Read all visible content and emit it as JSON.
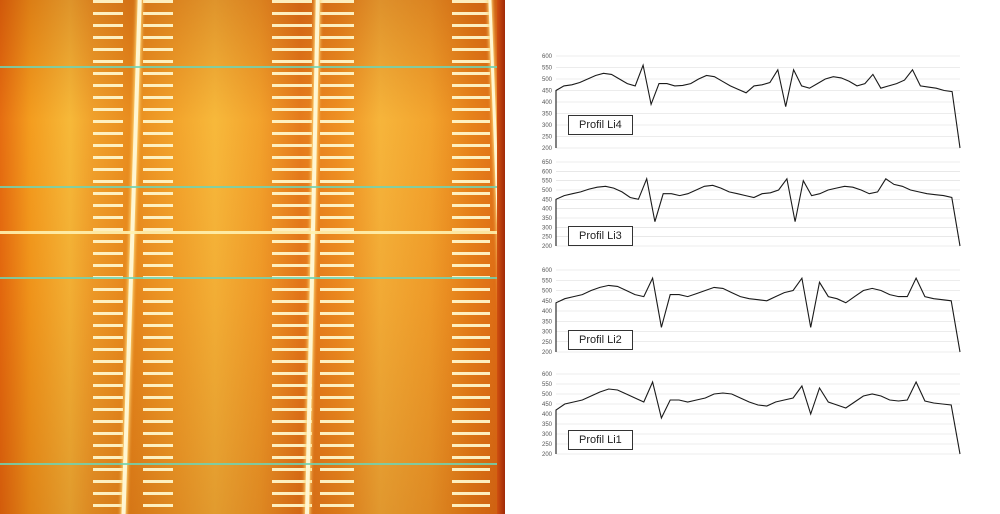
{
  "thermal_image": {
    "description_icon": "thermal-image"
  },
  "profiles": [
    {
      "label": "Profil Li4",
      "y_ticks": [
        "600",
        "550",
        "500",
        "450",
        "400",
        "350",
        "300",
        "250",
        "200"
      ],
      "series": [
        450,
        470,
        475,
        485,
        500,
        515,
        525,
        520,
        500,
        480,
        470,
        560,
        390,
        480,
        480,
        470,
        472,
        480,
        500,
        515,
        510,
        490,
        470,
        455,
        440,
        470,
        475,
        485,
        540,
        380,
        540,
        470,
        460,
        480,
        500,
        510,
        505,
        490,
        470,
        480,
        520,
        460,
        470,
        480,
        495,
        540,
        470,
        465,
        460,
        450,
        445,
        200
      ]
    },
    {
      "label": "Profil Li3",
      "y_ticks": [
        "650",
        "600",
        "550",
        "500",
        "450",
        "400",
        "350",
        "300",
        "250",
        "200"
      ],
      "series": [
        450,
        470,
        480,
        490,
        505,
        515,
        520,
        510,
        490,
        460,
        450,
        560,
        330,
        480,
        480,
        470,
        480,
        500,
        520,
        525,
        510,
        490,
        480,
        470,
        460,
        480,
        485,
        500,
        560,
        330,
        550,
        470,
        480,
        500,
        510,
        520,
        515,
        500,
        480,
        490,
        560,
        530,
        520,
        500,
        490,
        480,
        475,
        470,
        460,
        200
      ]
    },
    {
      "label": "Profil Li2",
      "y_ticks": [
        "600",
        "550",
        "500",
        "450",
        "400",
        "350",
        "300",
        "250",
        "200"
      ],
      "series": [
        440,
        460,
        470,
        480,
        500,
        515,
        525,
        520,
        500,
        480,
        470,
        560,
        320,
        480,
        480,
        470,
        485,
        500,
        515,
        510,
        490,
        470,
        460,
        455,
        450,
        470,
        490,
        500,
        560,
        320,
        540,
        470,
        460,
        440,
        470,
        500,
        510,
        500,
        480,
        470,
        470,
        560,
        470,
        460,
        455,
        450,
        200
      ]
    },
    {
      "label": "Profil Li1",
      "y_ticks": [
        "600",
        "550",
        "500",
        "450",
        "400",
        "350",
        "300",
        "250",
        "200"
      ],
      "series": [
        420,
        450,
        460,
        470,
        490,
        510,
        525,
        520,
        500,
        480,
        460,
        560,
        380,
        470,
        470,
        460,
        470,
        480,
        500,
        505,
        500,
        480,
        460,
        445,
        440,
        460,
        470,
        480,
        540,
        400,
        530,
        460,
        445,
        430,
        460,
        490,
        500,
        490,
        470,
        465,
        470,
        560,
        465,
        455,
        450,
        445,
        200
      ]
    }
  ],
  "colors": {
    "line": "#1a1a1a",
    "grid": "#d9d9d9"
  }
}
